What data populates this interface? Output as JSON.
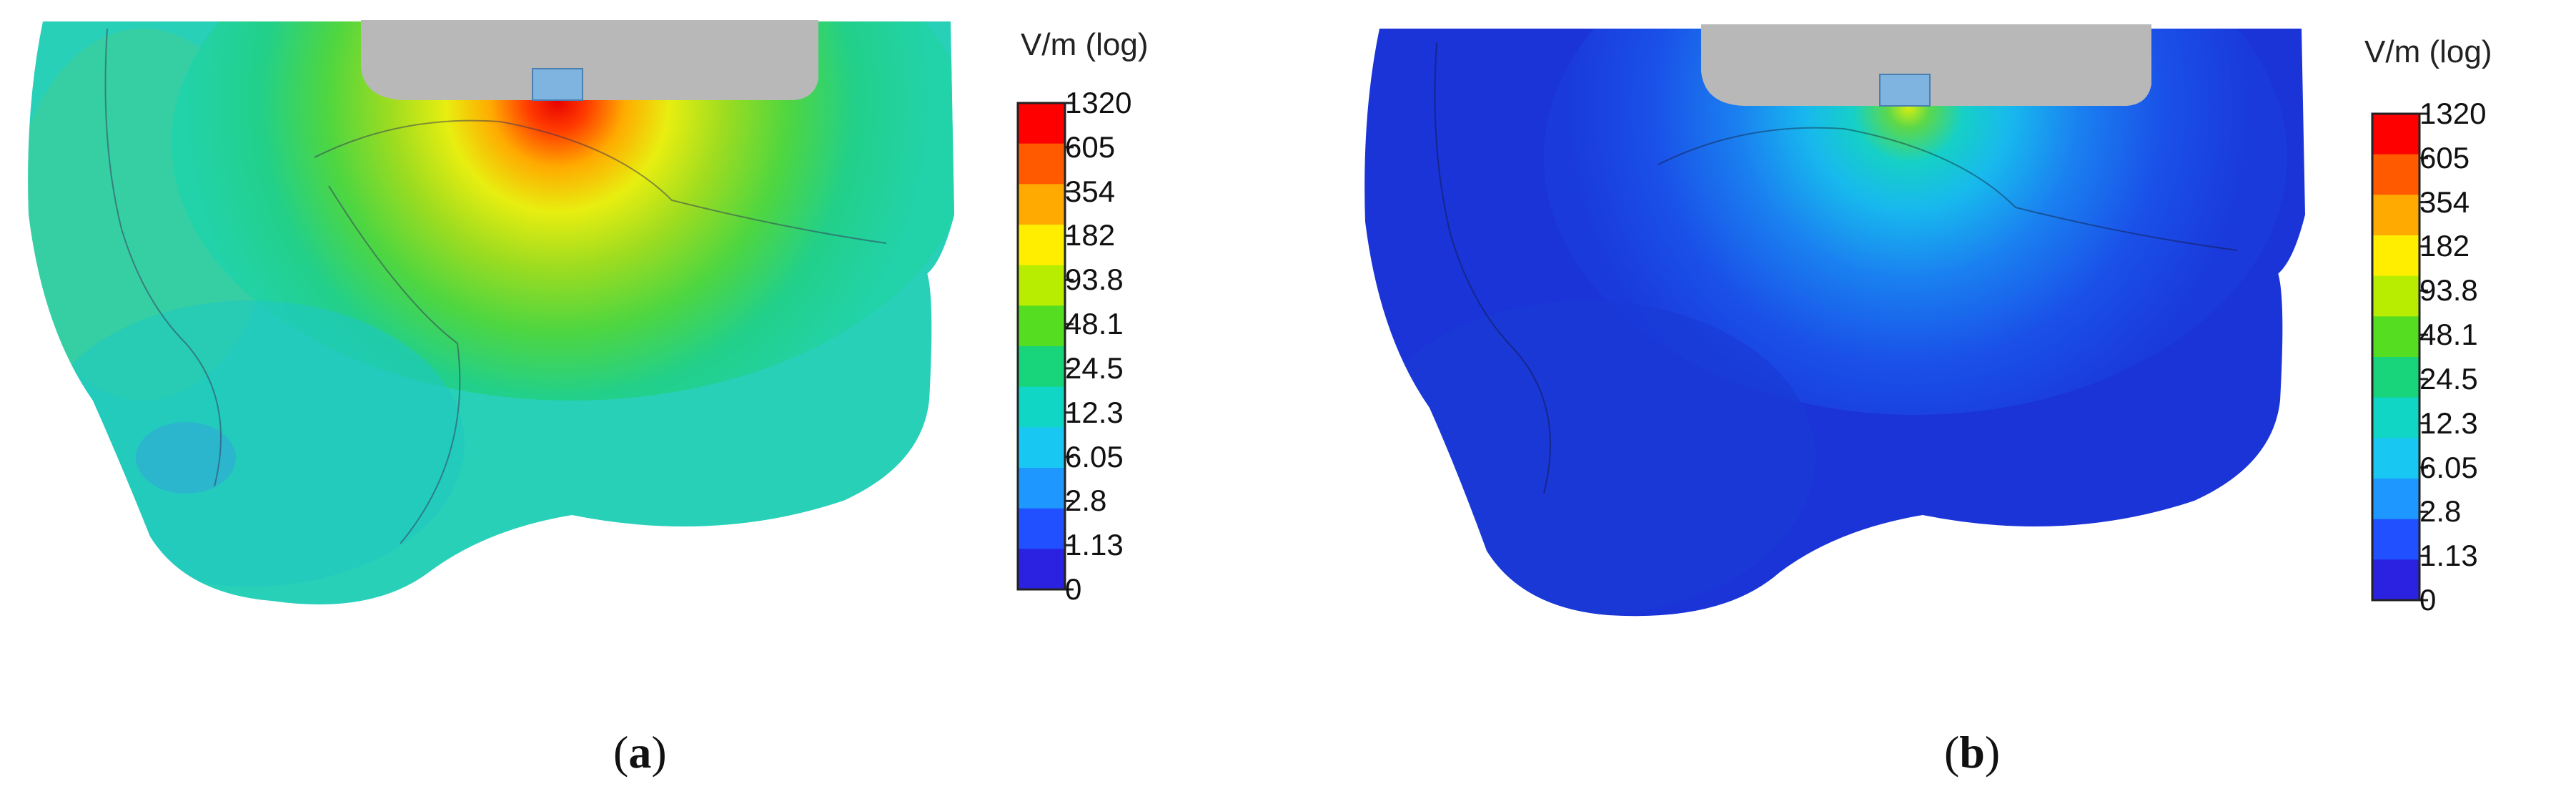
{
  "panels": [
    {
      "id": "a",
      "caption_open": "(",
      "caption_letter": "a",
      "caption_close": ")",
      "legend": {
        "title": "V/m (log)",
        "ticks": [
          "1320",
          "605",
          "354",
          "182",
          "93.8",
          "48.1",
          "24.5",
          "12.3",
          "6.05",
          "2.8",
          "1.13",
          "0"
        ]
      }
    },
    {
      "id": "b",
      "caption_open": "(",
      "caption_letter": "b",
      "caption_close": ")",
      "legend": {
        "title": "V/m (log)",
        "ticks": [
          "1320",
          "605",
          "354",
          "182",
          "93.8",
          "48.1",
          "24.5",
          "12.3",
          "6.05",
          "2.8",
          "1.13",
          "0"
        ]
      }
    }
  ],
  "colormap": [
    "#ff0000",
    "#ff5a00",
    "#ffaa00",
    "#ffee00",
    "#b8ec00",
    "#55dd22",
    "#18d47a",
    "#10d6c6",
    "#18c8f2",
    "#1e98ff",
    "#2050ff",
    "#2a22e0"
  ]
}
